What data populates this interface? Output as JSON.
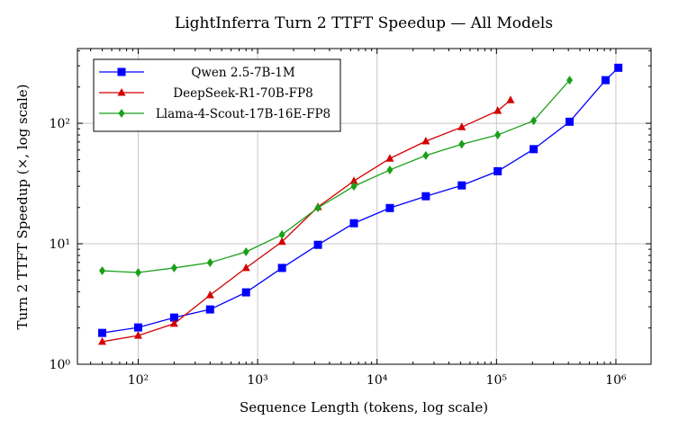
{
  "chart_data": {
    "type": "line",
    "title": "LightInferra Turn 2 TTFT Speedup — All Models",
    "xlabel": "Sequence Length (tokens, log scale)",
    "ylabel": "Turn 2 TTFT Speedup (×, log scale)",
    "xscale": "log",
    "yscale": "log",
    "xlim": [
      31,
      1970000
    ],
    "ylim": [
      1,
      417
    ],
    "grid": true,
    "legend": "top-left",
    "xticks": [
      {
        "v": 100,
        "label": "10²"
      },
      {
        "v": 1000,
        "label": "10³"
      },
      {
        "v": 10000,
        "label": "10⁴"
      },
      {
        "v": 100000,
        "label": "10⁵"
      },
      {
        "v": 1000000,
        "label": "10⁶"
      }
    ],
    "yticks": [
      {
        "v": 1,
        "label": "10⁰"
      },
      {
        "v": 10,
        "label": "10¹"
      },
      {
        "v": 100,
        "label": "10²"
      }
    ],
    "series": [
      {
        "name": "Qwen 2.5-7B-1M",
        "color": "#0000ff",
        "marker": "square",
        "x": [
          50,
          100,
          200,
          400,
          800,
          1600,
          3200,
          6400,
          12800,
          25600,
          51200,
          102400,
          204800,
          409600,
          819200,
          1048576
        ],
        "y": [
          1.82,
          2.02,
          2.44,
          2.85,
          3.95,
          6.3,
          9.8,
          14.8,
          19.8,
          24.8,
          30.5,
          40,
          61,
          103,
          228,
          289
        ]
      },
      {
        "name": "DeepSeek-R1-70B-FP8",
        "color": "#d40000",
        "marker": "triangle",
        "x": [
          50,
          100,
          200,
          400,
          800,
          1600,
          3200,
          6400,
          12800,
          25600,
          51200,
          102400,
          131072
        ],
        "y": [
          1.54,
          1.73,
          2.17,
          3.75,
          6.3,
          10.4,
          20.2,
          33.2,
          51,
          71,
          93,
          127,
          156
        ]
      },
      {
        "name": "Llama-4-Scout-17B-16E-FP8",
        "color": "#1a9f1a",
        "marker": "diamond",
        "x": [
          50,
          100,
          200,
          400,
          800,
          1600,
          3200,
          6400,
          12800,
          25600,
          51200,
          102400,
          204800,
          409600
        ],
        "y": [
          5.97,
          5.77,
          6.3,
          6.97,
          8.57,
          11.9,
          19.9,
          30,
          41,
          54,
          67,
          80,
          105,
          228
        ]
      }
    ]
  }
}
